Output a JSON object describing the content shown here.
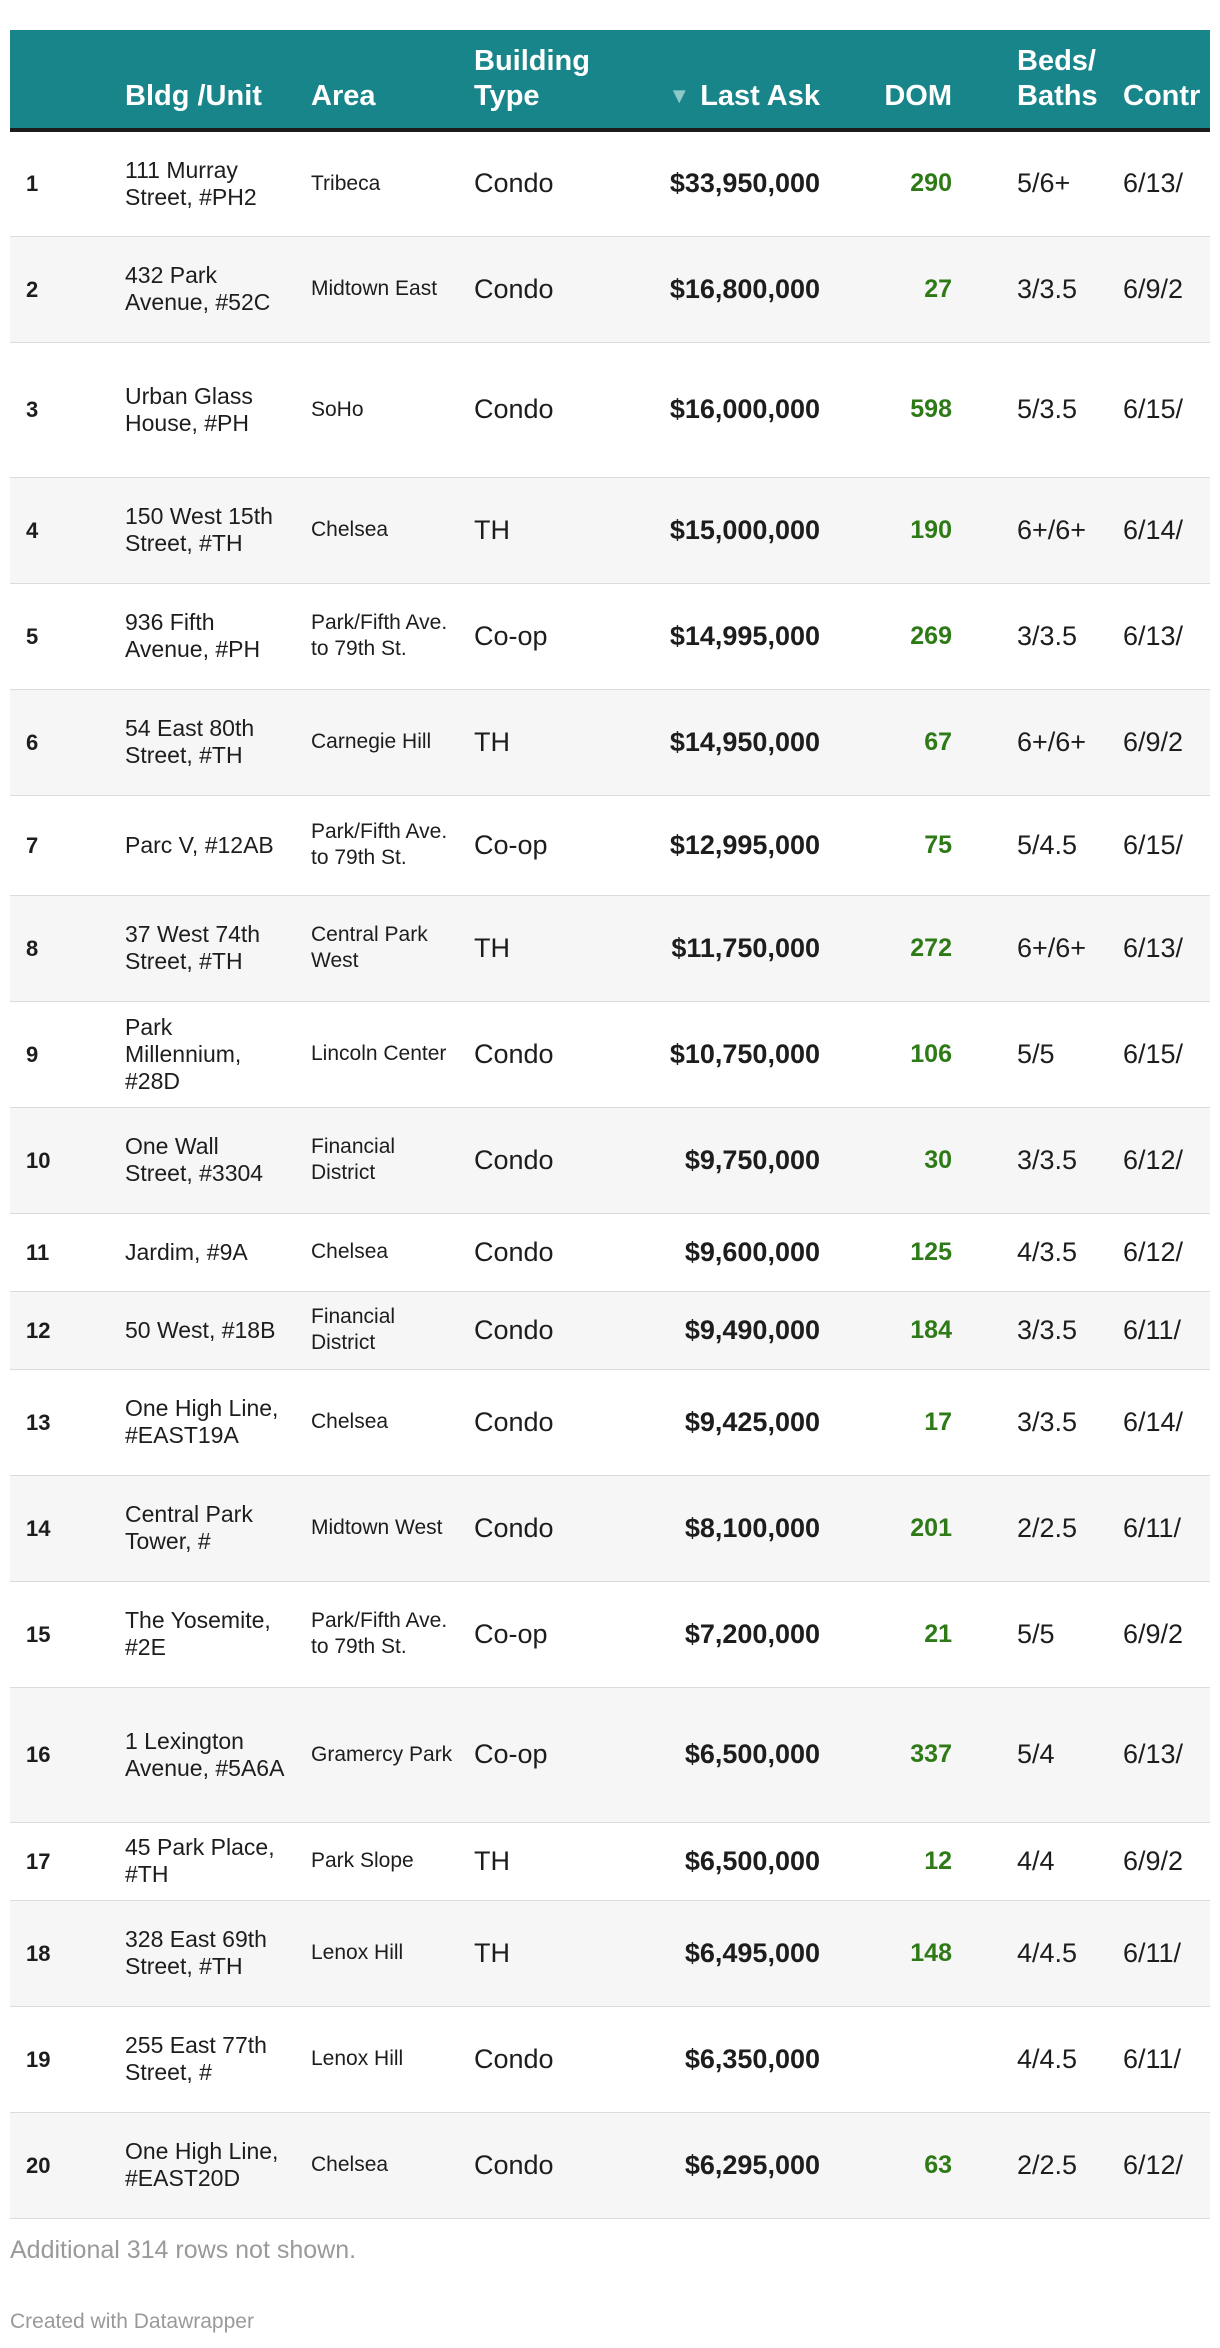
{
  "chart_data": {
    "type": "table",
    "columns": [
      "",
      "Bldg /Unit",
      "Area",
      "Building Type",
      "Last Ask",
      "DOM",
      "Beds/ Baths",
      "Contr Date"
    ],
    "sort": {
      "column": "Last Ask",
      "direction": "descending",
      "indicator": "▼"
    },
    "rows": [
      {
        "rank": "1",
        "unit": "111 Murray Street, #PH2",
        "area": "Tribeca",
        "type": "Condo",
        "ask": "$33,950,000",
        "dom": "290",
        "beds": "5/6+",
        "date": "6/13/"
      },
      {
        "rank": "2",
        "unit": "432 Park Avenue, #52C",
        "area": "Midtown East",
        "type": "Condo",
        "ask": "$16,800,000",
        "dom": "27",
        "beds": "3/3.5",
        "date": "6/9/2"
      },
      {
        "rank": "3",
        "unit": "Urban Glass House, #PH",
        "area": "SoHo",
        "type": "Condo",
        "ask": "$16,000,000",
        "dom": "598",
        "beds": "5/3.5",
        "date": "6/15/"
      },
      {
        "rank": "4",
        "unit": "150 West 15th Street, #TH",
        "area": "Chelsea",
        "type": "TH",
        "ask": "$15,000,000",
        "dom": "190",
        "beds": "6+/6+",
        "date": "6/14/"
      },
      {
        "rank": "5",
        "unit": "936 Fifth Avenue, #PH",
        "area": "Park/Fifth Ave. to 79th St.",
        "type": "Co-op",
        "ask": "$14,995,000",
        "dom": "269",
        "beds": "3/3.5",
        "date": "6/13/"
      },
      {
        "rank": "6",
        "unit": "54 East 80th Street, #TH",
        "area": "Carnegie Hill",
        "type": "TH",
        "ask": "$14,950,000",
        "dom": "67",
        "beds": "6+/6+",
        "date": "6/9/2"
      },
      {
        "rank": "7",
        "unit": "Parc V, #12AB",
        "area": "Park/Fifth Ave. to 79th St.",
        "type": "Co-op",
        "ask": "$12,995,000",
        "dom": "75",
        "beds": "5/4.5",
        "date": "6/15/"
      },
      {
        "rank": "8",
        "unit": "37 West 74th Street, #TH",
        "area": "Central Park West",
        "type": "TH",
        "ask": "$11,750,000",
        "dom": "272",
        "beds": "6+/6+",
        "date": "6/13/"
      },
      {
        "rank": "9",
        "unit": "Park Millennium, #28D",
        "area": "Lincoln Center",
        "type": "Condo",
        "ask": "$10,750,000",
        "dom": "106",
        "beds": "5/5",
        "date": "6/15/"
      },
      {
        "rank": "10",
        "unit": "One Wall Street, #3304",
        "area": "Financial District",
        "type": "Condo",
        "ask": "$9,750,000",
        "dom": "30",
        "beds": "3/3.5",
        "date": "6/12/"
      },
      {
        "rank": "11",
        "unit": "Jardim, #9A",
        "area": "Chelsea",
        "type": "Condo",
        "ask": "$9,600,000",
        "dom": "125",
        "beds": "4/3.5",
        "date": "6/12/"
      },
      {
        "rank": "12",
        "unit": "50 West, #18B",
        "area": "Financial District",
        "type": "Condo",
        "ask": "$9,490,000",
        "dom": "184",
        "beds": "3/3.5",
        "date": "6/11/"
      },
      {
        "rank": "13",
        "unit": "One High Line, #EAST19A",
        "area": "Chelsea",
        "type": "Condo",
        "ask": "$9,425,000",
        "dom": "17",
        "beds": "3/3.5",
        "date": "6/14/"
      },
      {
        "rank": "14",
        "unit": "Central Park Tower, #",
        "area": "Midtown West",
        "type": "Condo",
        "ask": "$8,100,000",
        "dom": "201",
        "beds": "2/2.5",
        "date": "6/11/"
      },
      {
        "rank": "15",
        "unit": "The Yosemite, #2E",
        "area": "Park/Fifth Ave. to 79th St.",
        "type": "Co-op",
        "ask": "$7,200,000",
        "dom": "21",
        "beds": "5/5",
        "date": "6/9/2"
      },
      {
        "rank": "16",
        "unit": "1 Lexington Avenue, #5A6A",
        "area": "Gramercy Park",
        "type": "Co-op",
        "ask": "$6,500,000",
        "dom": "337",
        "beds": "5/4",
        "date": "6/13/"
      },
      {
        "rank": "17",
        "unit": "45 Park Place, #TH",
        "area": "Park Slope",
        "type": "TH",
        "ask": "$6,500,000",
        "dom": "12",
        "beds": "4/4",
        "date": "6/9/2"
      },
      {
        "rank": "18",
        "unit": "328 East 69th Street, #TH",
        "area": "Lenox Hill",
        "type": "TH",
        "ask": "$6,495,000",
        "dom": "148",
        "beds": "4/4.5",
        "date": "6/11/"
      },
      {
        "rank": "19",
        "unit": "255 East 77th Street, #",
        "area": "Lenox Hill",
        "type": "Condo",
        "ask": "$6,350,000",
        "dom": "",
        "beds": "4/4.5",
        "date": "6/11/"
      },
      {
        "rank": "20",
        "unit": "One High Line, #EAST20D",
        "area": "Chelsea",
        "type": "Condo",
        "ask": "$6,295,000",
        "dom": "63",
        "beds": "2/2.5",
        "date": "6/12/"
      }
    ],
    "colors": {
      "header_bg": "#17858a",
      "header_text": "#ffffff",
      "dom_text": "#2d7a16",
      "stripe": "#f6f6f6"
    }
  },
  "footer": {
    "note": "Additional 314 rows not shown.",
    "credit": "Created with Datawrapper"
  }
}
